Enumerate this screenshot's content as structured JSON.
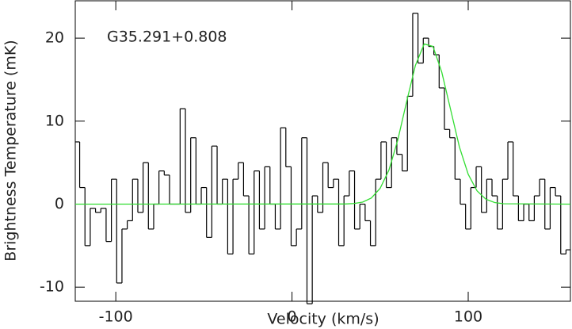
{
  "chart_data": {
    "type": "step",
    "xlabel": "Velocity (km/s)",
    "ylabel": "Brightness Temperature (mK)",
    "annotation": "G35.291+0.808",
    "xlim": [
      -123,
      158
    ],
    "ylim": [
      -11.7,
      24.5
    ],
    "xticks": [
      -100,
      0,
      100
    ],
    "yticks": [
      -10,
      0,
      10,
      20
    ],
    "series": [
      {
        "color": "#000000",
        "x": [
          -122,
          -119,
          -116,
          -113,
          -110,
          -107,
          -104,
          -101,
          -98,
          -95,
          -92,
          -89,
          -86,
          -83,
          -80,
          -77,
          -74,
          -71,
          -68,
          -65,
          -62,
          -59,
          -56,
          -53,
          -50,
          -47,
          -44,
          -41,
          -38,
          -35,
          -32,
          -29,
          -26,
          -23,
          -20,
          -17,
          -14,
          -11,
          -8,
          -5,
          -2,
          1,
          4,
          7,
          10,
          13,
          16,
          19,
          22,
          25,
          28,
          31,
          34,
          37,
          40,
          43,
          46,
          49,
          52,
          55,
          58,
          61,
          64,
          67,
          70,
          73,
          76,
          79,
          82,
          85,
          88,
          91,
          94,
          97,
          100,
          103,
          106,
          109,
          112,
          115,
          118,
          121,
          124,
          127,
          130,
          133,
          136,
          139,
          142,
          145,
          148,
          151,
          154,
          157
        ],
        "values": [
          7.5,
          2,
          -5,
          -0.5,
          -1,
          -0.5,
          -4.5,
          3,
          -9.5,
          -3,
          -2,
          3,
          -1,
          5,
          -3,
          0,
          4,
          3.5,
          0,
          0,
          11.5,
          -1,
          8,
          0,
          2,
          -4,
          7,
          0,
          3,
          -6,
          3,
          5,
          1,
          -6,
          4,
          -3,
          4.5,
          0,
          -3,
          9.2,
          4.5,
          -5,
          -3,
          8,
          -12,
          1,
          -1,
          5,
          2,
          3,
          -5,
          1,
          4,
          -3,
          0,
          -2,
          -5,
          3,
          7.5,
          2,
          8,
          6,
          4,
          13,
          23,
          17,
          20,
          19,
          18,
          14,
          9,
          8,
          3,
          0,
          -3,
          2,
          4.5,
          -1,
          3,
          1,
          -3,
          3,
          7.5,
          1,
          -2,
          0,
          -2,
          1,
          3,
          -3,
          2,
          1,
          -6,
          -5.5
        ]
      },
      {
        "color": "#33dd33",
        "x": [
          -123,
          30,
          35,
          40,
          45,
          50,
          55,
          60,
          65,
          70,
          75,
          80,
          85,
          90,
          95,
          100,
          105,
          110,
          115,
          120,
          158
        ],
        "values": [
          0,
          0.02,
          0.07,
          0.24,
          0.73,
          1.9,
          4.1,
          7.7,
          12.3,
          16.7,
          19.3,
          19.0,
          15.9,
          11.4,
          6.9,
          3.6,
          1.6,
          0.6,
          0.19,
          0.05,
          0
        ]
      }
    ]
  }
}
